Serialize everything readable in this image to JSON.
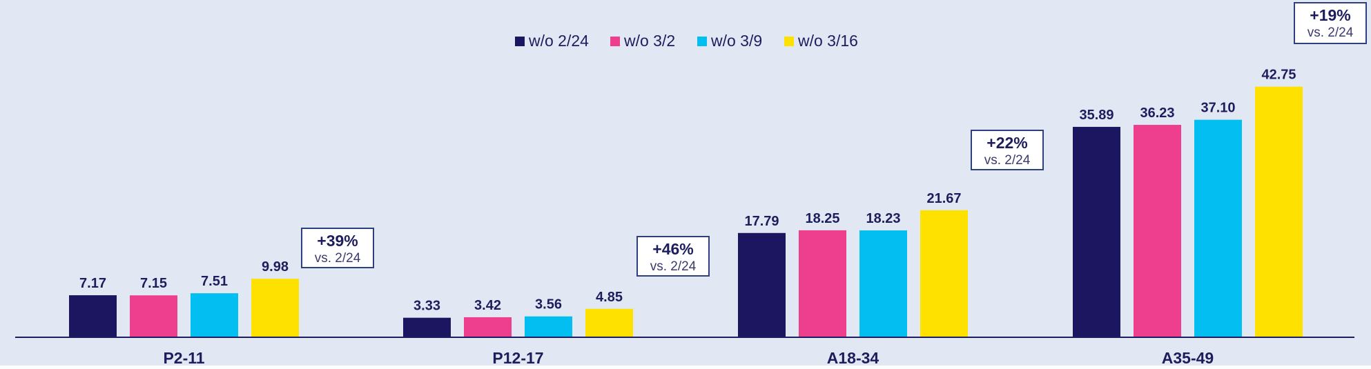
{
  "chart_data": {
    "type": "bar",
    "title": "",
    "xlabel": "",
    "ylabel": "",
    "categories": [
      "P2-11",
      "P12-17",
      "A18-34",
      "A35-49"
    ],
    "series": [
      {
        "name": "w/o 2/24",
        "color": "#1c1660",
        "values": [
          7.17,
          3.33,
          17.79,
          35.89
        ]
      },
      {
        "name": "w/o 3/2",
        "color": "#ee3e8e",
        "values": [
          7.15,
          3.42,
          18.25,
          36.23
        ]
      },
      {
        "name": "w/o 3/9",
        "color": "#03bef0",
        "values": [
          7.51,
          3.56,
          18.23,
          37.1
        ]
      },
      {
        "name": "w/o 3/16",
        "color": "#ffe100",
        "values": [
          9.98,
          4.85,
          21.67,
          42.75
        ]
      }
    ],
    "value_labels": [
      [
        "7.17",
        "3.33",
        "17.79",
        "35.89"
      ],
      [
        "7.15",
        "3.42",
        "18.25",
        "36.23"
      ],
      [
        "7.51",
        "3.56",
        "18.23",
        "37.10"
      ],
      [
        "9.98",
        "4.85",
        "21.67",
        "42.75"
      ]
    ],
    "ylim": [
      0,
      50
    ],
    "grid": false,
    "legend_position": "top-center",
    "annotations": [
      {
        "category": "P2-11",
        "change": "+39%",
        "note": "vs. 2/24"
      },
      {
        "category": "P12-17",
        "change": "+46%",
        "note": "vs. 2/24"
      },
      {
        "category": "A18-34",
        "change": "+22%",
        "note": "vs. 2/24"
      },
      {
        "category": "A35-49",
        "change": "+19%",
        "note": "vs. 2/24"
      }
    ]
  },
  "colors": {
    "background": "#e2e8f3",
    "axis": "#1d1d5e",
    "text": "#1d1d5e",
    "annotation_border": "#2d3f7c"
  }
}
